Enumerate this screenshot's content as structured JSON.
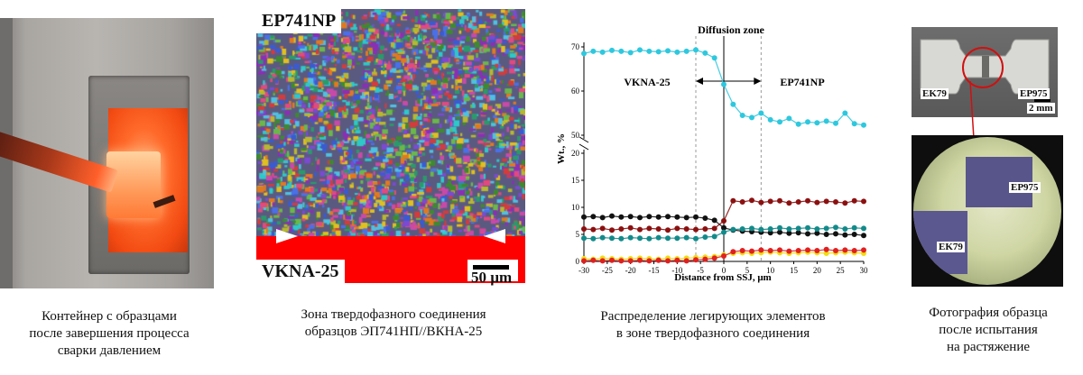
{
  "panel1": {
    "caption": [
      "Контейнер с образцами",
      "после завершения процесса",
      "сварки давлением"
    ]
  },
  "panel2": {
    "label_top": "EP741NP",
    "label_bottom": "VKNA-25",
    "scale": "50 µm",
    "caption": [
      "Зона твердофазного соединения",
      "образцов  ЭП741НП//ВКНА-25"
    ]
  },
  "panel3": {
    "caption": [
      "Распределение легирующих элементов",
      "в зоне твердофазного соединения"
    ]
  },
  "panel4": {
    "label_left": "EK79",
    "label_right": "EP975",
    "scale": "2 mm",
    "micro_label_right": "EP975",
    "micro_label_left": "EK79",
    "caption": [
      "Фотография образца",
      "после испытания",
      "на растяжение"
    ]
  },
  "chart_data": {
    "type": "scatter",
    "xlabel": "Distance from SSJ, μm",
    "ylabel": "Wt., %",
    "title": "Diffusion zone",
    "annotations": [
      "VKNA-25",
      "EP741NP"
    ],
    "xlim": [
      -30,
      30
    ],
    "x_ticks": [
      -30,
      -25,
      -20,
      -15,
      -10,
      -5,
      0,
      5,
      10,
      15,
      20,
      25,
      30
    ],
    "ylim_upper": [
      50,
      70
    ],
    "y_ticks_upper": [
      50,
      60,
      70
    ],
    "ylim_lower": [
      0,
      20
    ],
    "y_ticks_lower": [
      0,
      5,
      10,
      15,
      20
    ],
    "colors": {
      "cyan": "#2ec8de",
      "black": "#111111",
      "darkred": "#8b1010",
      "teal": "#138a8a",
      "yellow": "#f2dc12",
      "red": "#e02020"
    },
    "series": [
      {
        "color": "#2ec8de",
        "panel": "upper",
        "x": [
          -30,
          -28,
          -26,
          -24,
          -22,
          -20,
          -18,
          -16,
          -14,
          -12,
          -10,
          -8,
          -6,
          -4,
          -2,
          0,
          2,
          4,
          6,
          8,
          10,
          12,
          14,
          16,
          18,
          20,
          22,
          24,
          26,
          28,
          30
        ],
        "y": [
          68.5,
          69,
          68.8,
          69.2,
          69,
          68.7,
          69.3,
          69,
          68.9,
          69.1,
          68.8,
          69,
          69.3,
          68.6,
          67.5,
          61.5,
          57,
          54.5,
          54,
          55,
          53.5,
          53,
          53.8,
          52.5,
          53,
          52.8,
          53.2,
          52.7,
          55,
          52.6,
          52.3
        ]
      },
      {
        "color": "#111111",
        "panel": "lower",
        "x": [
          -30,
          -28,
          -26,
          -24,
          -22,
          -20,
          -18,
          -16,
          -14,
          -12,
          -10,
          -8,
          -6,
          -4,
          -2,
          0,
          2,
          4,
          6,
          8,
          10,
          12,
          14,
          16,
          18,
          20,
          22,
          24,
          26,
          28,
          30
        ],
        "y": [
          8.2,
          8.3,
          8.1,
          8.4,
          8.2,
          8.3,
          8.1,
          8.3,
          8.2,
          8.3,
          8.2,
          8.1,
          8.2,
          8.0,
          7.6,
          6.2,
          5.8,
          5.6,
          5.5,
          5.4,
          5.3,
          5.4,
          5.2,
          5.3,
          5.1,
          5.2,
          5.0,
          5.1,
          4.9,
          5.0,
          4.8
        ]
      },
      {
        "color": "#8b1010",
        "panel": "lower",
        "x": [
          -30,
          -28,
          -26,
          -24,
          -22,
          -20,
          -18,
          -16,
          -14,
          -12,
          -10,
          -8,
          -6,
          -4,
          -2,
          0,
          2,
          4,
          6,
          8,
          10,
          12,
          14,
          16,
          18,
          20,
          22,
          24,
          26,
          28,
          30
        ],
        "y": [
          6.0,
          5.9,
          6.1,
          5.8,
          6.0,
          6.2,
          5.9,
          6.1,
          6.0,
          5.8,
          6.1,
          6.0,
          5.9,
          6.0,
          6.1,
          7.5,
          11.2,
          11.0,
          11.3,
          10.9,
          11.1,
          11.2,
          10.8,
          11.0,
          11.2,
          10.9,
          11.1,
          11.0,
          10.8,
          11.2,
          11.1
        ]
      },
      {
        "color": "#138a8a",
        "panel": "lower",
        "x": [
          -30,
          -28,
          -26,
          -24,
          -22,
          -20,
          -18,
          -16,
          -14,
          -12,
          -10,
          -8,
          -6,
          -4,
          -2,
          0,
          2,
          4,
          6,
          8,
          10,
          12,
          14,
          16,
          18,
          20,
          22,
          24,
          26,
          28,
          30
        ],
        "y": [
          4.3,
          4.2,
          4.4,
          4.3,
          4.2,
          4.4,
          4.3,
          4.2,
          4.4,
          4.3,
          4.3,
          4.4,
          4.2,
          4.5,
          4.6,
          5.4,
          5.9,
          6.0,
          6.1,
          5.9,
          6.0,
          6.2,
          6.0,
          6.1,
          6.2,
          6.0,
          6.1,
          6.3,
          6.0,
          6.2,
          6.1
        ]
      },
      {
        "color": "#f2dc12",
        "panel": "lower",
        "x": [
          -30,
          -28,
          -26,
          -24,
          -22,
          -20,
          -18,
          -16,
          -14,
          -12,
          -10,
          -8,
          -6,
          -4,
          -2,
          0,
          2,
          4,
          6,
          8,
          10,
          12,
          14,
          16,
          18,
          20,
          22,
          24,
          26,
          28,
          30
        ],
        "y": [
          0.5,
          0.4,
          0.6,
          0.5,
          0.4,
          0.5,
          0.6,
          0.5,
          0.4,
          0.6,
          0.5,
          0.6,
          0.7,
          0.8,
          0.9,
          1.2,
          1.5,
          1.6,
          1.5,
          1.6,
          1.7,
          1.6,
          1.5,
          1.6,
          1.7,
          1.6,
          1.5,
          1.6,
          1.7,
          1.6,
          1.5
        ]
      },
      {
        "color": "#e02020",
        "panel": "lower",
        "x": [
          -30,
          -28,
          -26,
          -24,
          -22,
          -20,
          -18,
          -16,
          -14,
          -12,
          -10,
          -8,
          -6,
          -4,
          -2,
          0,
          2,
          4,
          6,
          8,
          10,
          12,
          14,
          16,
          18,
          20,
          22,
          24,
          26,
          28,
          30
        ],
        "y": [
          0.1,
          0.2,
          0.1,
          0.2,
          0.1,
          0.1,
          0.2,
          0.1,
          0.2,
          0.1,
          0.2,
          0.1,
          0.3,
          0.4,
          0.6,
          1.0,
          1.8,
          2.0,
          1.9,
          2.1,
          2.0,
          2.1,
          1.9,
          2.0,
          2.1,
          2.0,
          2.2,
          2.0,
          2.1,
          2.0,
          2.1
        ]
      }
    ]
  }
}
